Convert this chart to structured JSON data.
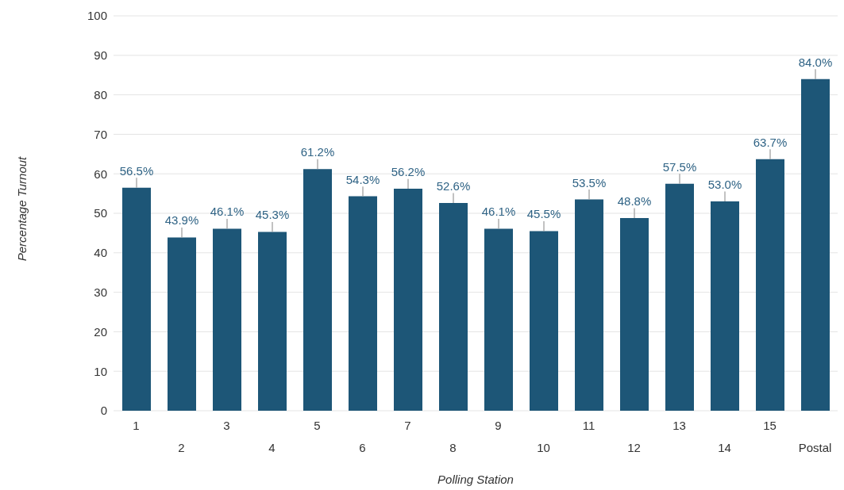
{
  "chart_data": {
    "type": "bar",
    "xlabel": "Polling Station",
    "ylabel": "Percentage Turnout",
    "categories": [
      "1",
      "2",
      "3",
      "4",
      "5",
      "6",
      "7",
      "8",
      "9",
      "10",
      "11",
      "12",
      "13",
      "14",
      "15",
      "Postal"
    ],
    "values": [
      56.5,
      43.9,
      46.1,
      45.3,
      61.2,
      54.3,
      56.2,
      52.6,
      46.1,
      45.5,
      53.5,
      48.8,
      57.5,
      53.0,
      63.7,
      84.0
    ],
    "value_labels": [
      "56.5%",
      "43.9%",
      "46.1%",
      "45.3%",
      "61.2%",
      "54.3%",
      "56.2%",
      "52.6%",
      "46.1%",
      "45.5%",
      "53.5%",
      "48.8%",
      "57.5%",
      "53.0%",
      "63.7%",
      "84.0%"
    ],
    "errors": [
      [
        56.5,
        59.0
      ],
      [
        43.9,
        46.4
      ],
      [
        46.1,
        48.6
      ],
      [
        45.3,
        47.8
      ],
      [
        61.2,
        63.7
      ],
      [
        54.3,
        56.8
      ],
      [
        56.2,
        58.7
      ],
      [
        52.6,
        55.1
      ],
      [
        46.1,
        48.6
      ],
      [
        45.5,
        48.0
      ],
      [
        53.5,
        56.0
      ],
      [
        48.8,
        51.3
      ],
      [
        57.5,
        60.0
      ],
      [
        53.0,
        55.5
      ],
      [
        63.7,
        66.2
      ],
      [
        84.0,
        86.5
      ]
    ],
    "color": "#1d5677",
    "ylim": [
      0,
      100
    ],
    "yticks": [
      0,
      10,
      20,
      30,
      40,
      50,
      60,
      70,
      80,
      90,
      100
    ],
    "grid": "y",
    "legend": false
  }
}
